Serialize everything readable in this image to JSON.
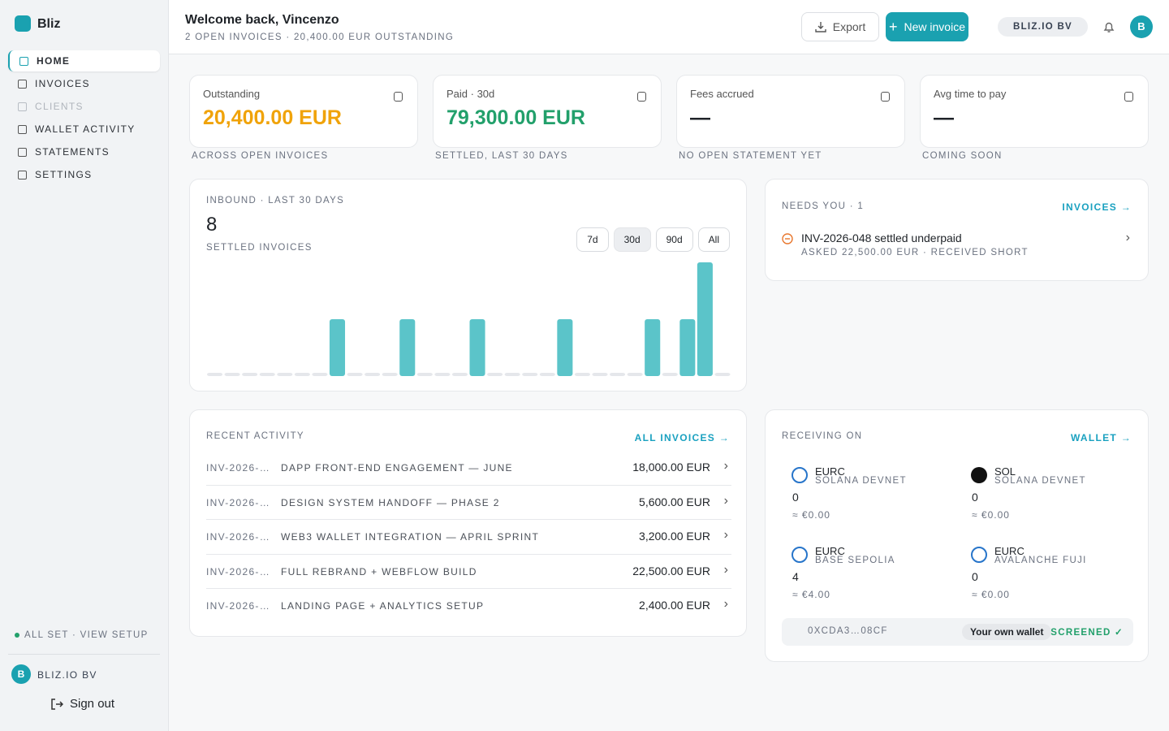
{
  "sidebar": {
    "brand": "Bliz",
    "nav": [
      "HOME",
      "INVOICES",
      "CLIENTS",
      "WALLET ACTIVITY",
      "STATEMENTS",
      "SETTINGS"
    ],
    "setup": "ALL SET · VIEW SETUP",
    "org_initial": "B",
    "org": "BLIZ.IO BV",
    "sign_out": "Sign out"
  },
  "header": {
    "title": "Welcome back, Vincenzo",
    "subtitle": "2 OPEN INVOICES · 20,400.00 EUR OUTSTANDING",
    "export": "Export",
    "new_invoice": "New invoice",
    "org": "BLIZ.IO BV",
    "avatar": "B"
  },
  "stats": [
    {
      "label": "Outstanding",
      "value": "20,400.00 EUR",
      "note": "ACROSS OPEN INVOICES"
    },
    {
      "label": "Paid · 30d",
      "value": "79,300.00 EUR",
      "note": "SETTLED, LAST 30 DAYS"
    },
    {
      "label": "Fees accrued",
      "value": "—",
      "note": "NO OPEN STATEMENT YET"
    },
    {
      "label": "Avg time to pay",
      "value": "—",
      "note": "COMING SOON"
    }
  ],
  "inbound": {
    "title": "INBOUND · LAST 30 DAYS",
    "count": 8,
    "count_label": "SETTLED INVOICES",
    "ranges": [
      "7d",
      "30d",
      "90d",
      "All"
    ],
    "values": [
      0,
      0,
      0,
      0,
      0,
      0,
      0,
      1,
      0,
      0,
      0,
      1,
      0,
      0,
      0,
      1,
      0,
      0,
      0,
      0,
      1,
      0,
      0,
      0,
      0,
      1,
      0,
      1,
      2,
      0
    ]
  },
  "needs": {
    "title": "NEEDS YOU · 1",
    "link": "INVOICES →",
    "items": [
      {
        "title": "INV-2026-048 settled underpaid",
        "detail": "ASKED 22,500.00 EUR · RECEIVED SHORT"
      }
    ]
  },
  "recent": {
    "title": "RECENT ACTIVITY",
    "link": "ALL INVOICES →",
    "rows": [
      {
        "id": "INV-2026-…",
        "desc": "DAPP FRONT-END ENGAGEMENT — JUNE",
        "amount": "18,000.00 EUR"
      },
      {
        "id": "INV-2026-…",
        "desc": "DESIGN SYSTEM HANDOFF — PHASE 2",
        "amount": "5,600.00 EUR"
      },
      {
        "id": "INV-2026-…",
        "desc": "WEB3 WALLET INTEGRATION — APRIL SPRINT",
        "amount": "3,200.00 EUR"
      },
      {
        "id": "INV-2026-…",
        "desc": "FULL REBRAND + WEBFLOW BUILD",
        "amount": "22,500.00 EUR"
      },
      {
        "id": "INV-2026-…",
        "desc": "LANDING PAGE + ANALYTICS SETUP",
        "amount": "2,400.00 EUR"
      }
    ]
  },
  "receiving": {
    "title": "RECEIVING ON",
    "link": "WALLET →",
    "assets": [
      {
        "token": "EURC",
        "network": "SOLANA DEVNET",
        "balance": 0,
        "fiat": "≈ €0.00"
      },
      {
        "token": "SOL",
        "network": "SOLANA DEVNET",
        "balance": 0,
        "fiat": "≈ €0.00"
      },
      {
        "token": "EURC",
        "network": "BASE SEPOLIA",
        "balance": 4,
        "fiat": "≈ €4.00"
      },
      {
        "token": "EURC",
        "network": "AVALANCHE FUJI",
        "balance": 0,
        "fiat": "≈ €0.00"
      }
    ],
    "wallet": {
      "address": "0XCDA3…08CF",
      "tag": "Your own wallet",
      "status": "SCREENED ✓"
    }
  }
}
